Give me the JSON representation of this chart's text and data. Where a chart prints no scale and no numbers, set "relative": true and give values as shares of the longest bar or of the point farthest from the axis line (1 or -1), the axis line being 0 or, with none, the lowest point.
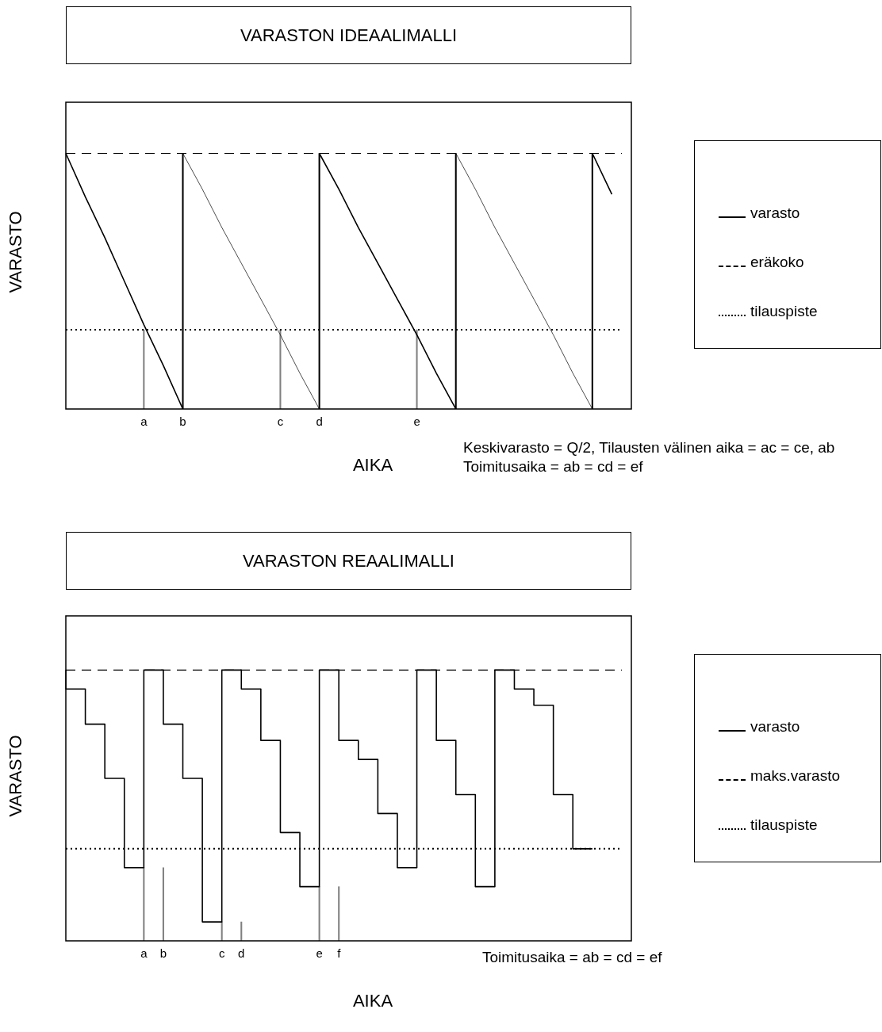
{
  "chart_data": [
    {
      "type": "line",
      "title": "VARASTON IDEAALIMALLI",
      "xlabel": "AIKA",
      "ylabel": "VARASTO",
      "relative": true,
      "grid": false,
      "legend": "right",
      "tick_labels": "x",
      "categories": [
        null,
        null,
        null,
        null,
        "a",
        null,
        "b",
        null,
        null,
        null,
        null,
        "c",
        null,
        "d",
        null,
        null,
        null,
        null,
        "e",
        null,
        null,
        null,
        null,
        null,
        null,
        null,
        null,
        null,
        null,
        null
      ],
      "series": [
        {
          "name": "varasto",
          "color": "#000000",
          "values": [
            1,
            0.83,
            0.67,
            0.5,
            0.33,
            0.17,
            0,
            null,
            null,
            null,
            null,
            null,
            null,
            1,
            0.86,
            0.71,
            0.57,
            0.43,
            0.29,
            0.14,
            0,
            null,
            null,
            null,
            null,
            null,
            null,
            1,
            0.84,
            null
          ]
        },
        {
          "color": "#000000",
          "values": [
            null,
            null,
            null,
            null,
            null,
            null,
            1,
            0.86,
            0.71,
            0.57,
            0.43,
            0.29,
            0.14,
            0,
            null,
            null,
            null,
            null,
            null,
            null,
            1,
            0.86,
            0.71,
            0.57,
            0.43,
            0.29,
            0.14,
            0,
            null,
            null
          ]
        },
        {
          "type": "bar",
          "color": "#000000",
          "values": [
            null,
            null,
            null,
            null,
            null,
            null,
            1,
            null,
            null,
            null,
            null,
            null,
            null,
            1,
            null,
            null,
            null,
            null,
            null,
            null,
            1,
            null,
            null,
            null,
            null,
            null,
            null,
            1,
            null,
            null
          ]
        },
        {
          "type": "bar",
          "color": "#808080",
          "values": [
            null,
            null,
            null,
            null,
            0.31,
            null,
            null,
            null,
            null,
            null,
            null,
            0.31,
            null,
            null,
            null,
            null,
            null,
            null,
            0.31,
            null,
            null,
            null,
            null,
            null,
            null,
            null,
            null,
            null,
            null,
            null
          ]
        }
      ],
      "ref_lines": [
        {
          "axis": "y",
          "value": 1,
          "label": "eräkoko",
          "line_style": "dashed",
          "color": "#000000"
        },
        {
          "axis": "y",
          "value": 0.31,
          "label": "tilauspiste",
          "line_style": "dotted",
          "color": "#000000"
        }
      ],
      "annotations": [
        "Keskivarasto = Q/2, Tilausten välinen aika = ac = ce, ab Toimitusaika = ab = cd = ef"
      ]
    },
    {
      "type": "step",
      "title": "VARASTON REAALIMALLI",
      "xlabel": "AIKA",
      "ylabel": "VARASTO",
      "relative": true,
      "grid": false,
      "legend": "right",
      "tick_labels": "x",
      "categories": [
        null,
        null,
        null,
        null,
        "a",
        "b",
        null,
        null,
        "c",
        "d",
        null,
        null,
        null,
        "e",
        "f",
        null,
        null,
        null,
        null,
        null,
        null,
        null,
        null,
        null,
        null,
        null,
        null,
        null,
        null,
        null
      ],
      "series": [
        {
          "name": "varasto",
          "color": "#000000",
          "values": [
            1,
            0.93,
            0.8,
            0.6,
            0.27,
            1,
            0.8,
            0.6,
            0.07,
            1,
            0.93,
            0.74,
            0.4,
            0.2,
            1,
            0.74,
            0.67,
            0.47,
            0.27,
            1,
            0.74,
            0.54,
            0.2,
            1,
            0.93,
            0.87,
            0.54,
            0.34,
            null,
            null
          ]
        },
        {
          "type": "bar",
          "color": "#808080",
          "values": [
            null,
            null,
            null,
            null,
            0.27,
            0.27,
            null,
            null,
            0.07,
            0.07,
            null,
            null,
            null,
            0.2,
            0.2,
            null,
            null,
            null,
            null,
            null,
            null,
            null,
            null,
            null,
            null,
            null,
            null,
            null,
            null,
            null
          ]
        }
      ],
      "ref_lines": [
        {
          "axis": "y",
          "value": 1,
          "label": "maks.varasto",
          "line_style": "dashed",
          "color": "#000000"
        },
        {
          "axis": "y",
          "value": 0.34,
          "label": "tilauspiste",
          "line_style": "dotted",
          "color": "#000000"
        }
      ],
      "annotations": [
        "Toimitusaika = ab = cd = ef"
      ]
    }
  ]
}
